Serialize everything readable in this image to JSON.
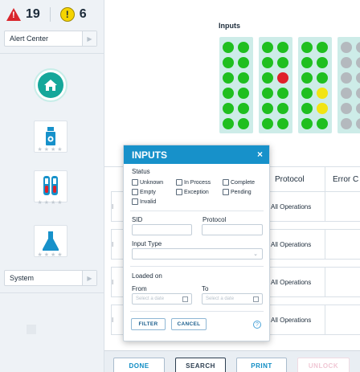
{
  "alerts": {
    "error_count": "19",
    "warning_count": "6"
  },
  "sidebar": {
    "alert_center_label": "Alert Center",
    "system_label": "System"
  },
  "inputs_panel": {
    "title": "Inputs",
    "racks": [
      [
        "green",
        "green",
        "green",
        "green",
        "green",
        "green",
        "green",
        "green",
        "green",
        "green",
        "green",
        "green"
      ],
      [
        "green",
        "green",
        "green",
        "green",
        "green",
        "red",
        "green",
        "green",
        "green",
        "green",
        "green",
        "green"
      ],
      [
        "green",
        "green",
        "green",
        "green",
        "green",
        "green",
        "green",
        "yellow",
        "green",
        "yellow",
        "green",
        "green"
      ],
      [
        "gray",
        "gray",
        "gray",
        "gray",
        "gray",
        "gray",
        "gray",
        "gray",
        "gray",
        "gray",
        "gray",
        "gray"
      ]
    ],
    "colors": {
      "green": "#1fbf1f",
      "red": "#e0202a",
      "yellow": "#f2e413",
      "gray": "#b4b9be"
    }
  },
  "table": {
    "headers": [
      "Protocol",
      "Error C"
    ],
    "row_stub": "I",
    "rows": [
      {
        "protocol": "All Operations"
      },
      {
        "protocol": "All Operations"
      },
      {
        "protocol": "All Operations"
      },
      {
        "protocol": "All Operations"
      }
    ]
  },
  "bottom_bar": {
    "done": "DONE",
    "search": "SEARCH",
    "print": "PRINT",
    "unlock": "UNLOCK"
  },
  "modal": {
    "title": "INPUTS",
    "close": "×",
    "status_label": "Status",
    "statuses": [
      "Unknown",
      "In Process",
      "Complete",
      "Empty",
      "Exception",
      "Pending",
      "Invalid"
    ],
    "sid_label": "SID",
    "protocol_label": "Protocol",
    "input_type_label": "Input Type",
    "loaded_on_label": "Loaded on",
    "from_label": "From",
    "to_label": "To",
    "date_placeholder": "Select a date",
    "filter_button": "FILTER",
    "cancel_button": "CANCEL",
    "help": "?"
  }
}
